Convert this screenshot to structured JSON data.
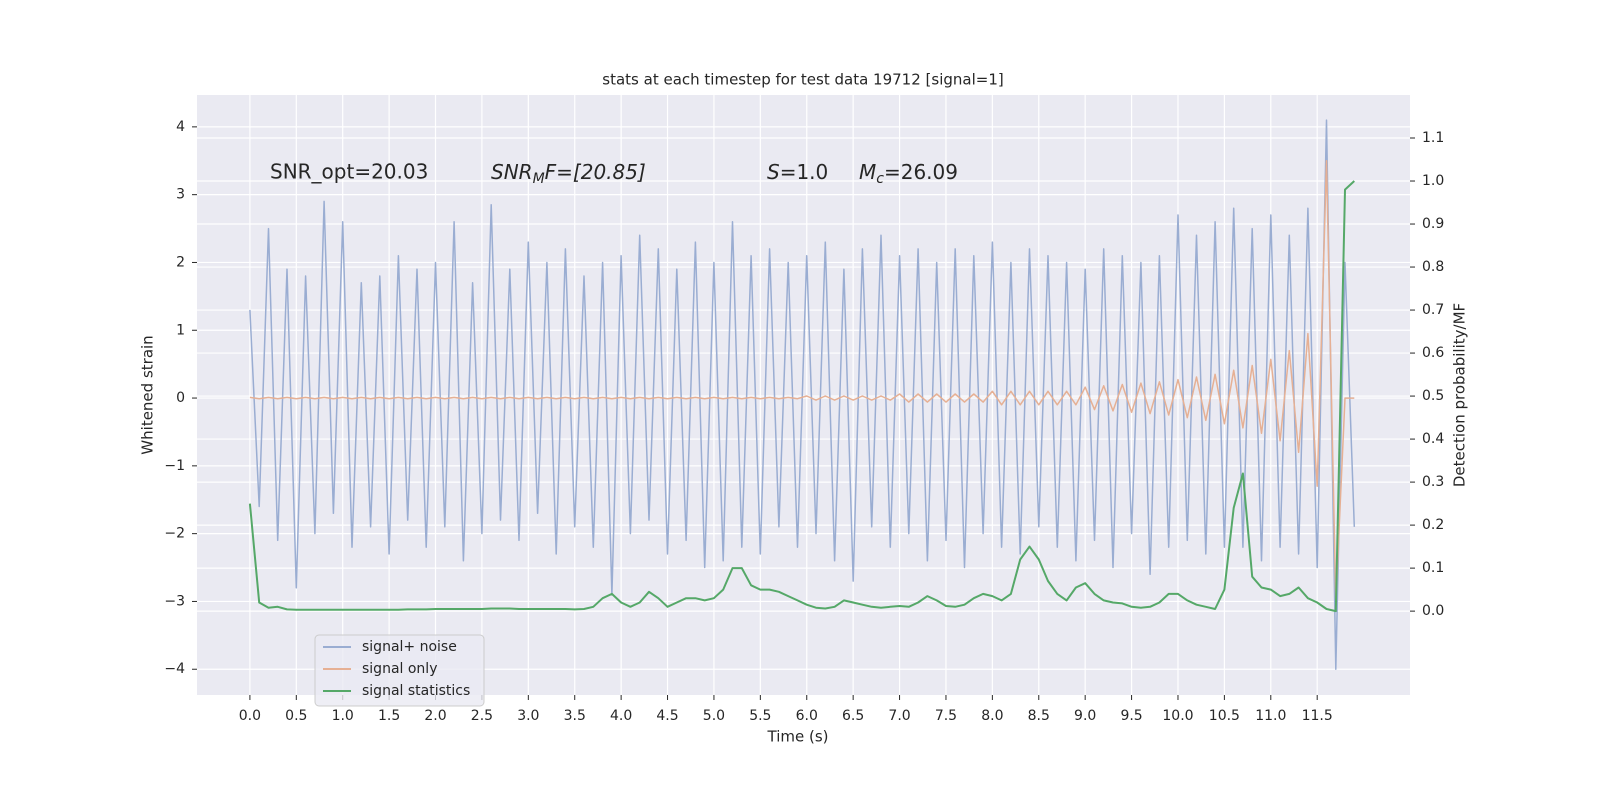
{
  "chart_data": {
    "type": "line",
    "title": "stats at each timestep for test data 19712 [signal=1]",
    "xlabel": "Time (s)",
    "ylabel": "Whitened strain",
    "y2label": "Detection probability/MF",
    "annotations": [
      {
        "text": "SNR_opt=20.03"
      },
      {
        "base": "SNR",
        "sub": "M",
        "tail": "F=[20.85]"
      },
      {
        "base": "S",
        "tail": "=1.0"
      },
      {
        "base": "M",
        "sub": "c",
        "tail": "=26.09"
      }
    ],
    "x": [
      0,
      0.1,
      0.2,
      0.3,
      0.4,
      0.5,
      0.6,
      0.7,
      0.8,
      0.9,
      1,
      1.1,
      1.2,
      1.3,
      1.4,
      1.5,
      1.6,
      1.7,
      1.8,
      1.9,
      2,
      2.1,
      2.2,
      2.3,
      2.4,
      2.5,
      2.6,
      2.7,
      2.8,
      2.9,
      3,
      3.1,
      3.2,
      3.3,
      3.4,
      3.5,
      3.6,
      3.7,
      3.8,
      3.9,
      4,
      4.1,
      4.2,
      4.3,
      4.4,
      4.5,
      4.6,
      4.7,
      4.8,
      4.9,
      5,
      5.1,
      5.2,
      5.3,
      5.4,
      5.5,
      5.6,
      5.7,
      5.8,
      5.9,
      6,
      6.1,
      6.2,
      6.3,
      6.4,
      6.5,
      6.6,
      6.7,
      6.8,
      6.9,
      7,
      7.1,
      7.2,
      7.3,
      7.4,
      7.5,
      7.6,
      7.7,
      7.8,
      7.9,
      8,
      8.1,
      8.2,
      8.3,
      8.4,
      8.5,
      8.6,
      8.7,
      8.8,
      8.9,
      9,
      9.1,
      9.2,
      9.3,
      9.4,
      9.5,
      9.6,
      9.7,
      9.8,
      9.9,
      10,
      10.1,
      10.2,
      10.3,
      10.4,
      10.5,
      10.6,
      10.7,
      10.8,
      10.9,
      11,
      11.1,
      11.2,
      11.3,
      11.4,
      11.5,
      11.6,
      11.7,
      11.8,
      11.9
    ],
    "series": [
      {
        "name": "signal+ noise",
        "color": "#9aadd2",
        "values": [
          1.3,
          -1.6,
          2.5,
          -2.1,
          1.9,
          -2.8,
          1.8,
          -2.0,
          2.9,
          -1.7,
          2.6,
          -2.2,
          1.7,
          -1.9,
          1.8,
          -2.3,
          2.1,
          -1.8,
          1.9,
          -2.2,
          2.0,
          -1.9,
          2.6,
          -2.4,
          1.7,
          -2.0,
          2.85,
          -1.8,
          1.9,
          -2.1,
          2.3,
          -1.7,
          2.0,
          -2.3,
          2.2,
          -1.9,
          1.8,
          -2.2,
          2.0,
          -2.9,
          2.1,
          -2.0,
          2.4,
          -1.8,
          2.2,
          -2.3,
          1.9,
          -2.1,
          2.3,
          -2.5,
          2.0,
          -2.4,
          2.6,
          -2.2,
          2.1,
          -2.3,
          2.2,
          -1.9,
          2.0,
          -2.2,
          2.1,
          -2.0,
          2.3,
          -2.4,
          1.9,
          -2.7,
          2.2,
          -1.9,
          2.4,
          -2.2,
          2.1,
          -2.0,
          2.2,
          -2.4,
          2.0,
          -2.1,
          2.2,
          -2.5,
          2.1,
          -2.0,
          2.3,
          -2.2,
          2.0,
          -2.3,
          2.2,
          -1.9,
          2.1,
          -2.2,
          2.0,
          -2.4,
          1.9,
          -2.1,
          2.2,
          -2.5,
          2.1,
          -2.0,
          2.0,
          -2.6,
          2.1,
          -2.2,
          2.7,
          -2.1,
          2.4,
          -2.3,
          2.6,
          -2.2,
          2.8,
          -2.2,
          2.5,
          -2.4,
          2.7,
          -2.2,
          2.4,
          -2.3,
          2.8,
          -2.5,
          4.1,
          -4.0,
          2.0,
          -1.9
        ]
      },
      {
        "name": "signal only",
        "color": "#e6b094",
        "values": [
          0.01,
          -0.01,
          0.01,
          -0.01,
          0.01,
          -0.01,
          0.01,
          -0.01,
          0.01,
          -0.01,
          0.01,
          -0.01,
          0.01,
          -0.01,
          0.01,
          -0.01,
          0.01,
          -0.01,
          0.01,
          -0.01,
          0.01,
          -0.01,
          0.01,
          -0.01,
          0.01,
          -0.01,
          0.01,
          -0.01,
          0.01,
          -0.01,
          0.01,
          -0.01,
          0.01,
          -0.01,
          0.01,
          -0.01,
          0.01,
          -0.01,
          0.01,
          -0.01,
          0.01,
          -0.01,
          0.01,
          -0.01,
          0.01,
          -0.01,
          0.01,
          -0.01,
          0.01,
          -0.01,
          0.01,
          -0.01,
          0.01,
          -0.01,
          0.01,
          -0.01,
          0.01,
          -0.01,
          0.01,
          -0.01,
          0.03,
          -0.03,
          0.03,
          -0.03,
          0.03,
          -0.03,
          0.03,
          -0.03,
          0.03,
          -0.03,
          0.06,
          -0.06,
          0.06,
          -0.06,
          0.06,
          -0.06,
          0.06,
          -0.06,
          0.06,
          -0.06,
          0.1,
          -0.1,
          0.1,
          -0.1,
          0.1,
          -0.1,
          0.1,
          -0.1,
          0.1,
          -0.1,
          0.16,
          -0.17,
          0.18,
          -0.19,
          0.2,
          -0.21,
          0.22,
          -0.23,
          0.24,
          -0.25,
          0.27,
          -0.29,
          0.31,
          -0.33,
          0.35,
          -0.38,
          0.41,
          -0.44,
          0.48,
          -0.52,
          0.57,
          -0.63,
          0.7,
          -0.8,
          0.95,
          -1.3,
          3.5,
          -3.0,
          0,
          0
        ]
      },
      {
        "name": "signal statistics",
        "color": "#55a868",
        "axis": "y2",
        "values": [
          0.25,
          0.02,
          0.008,
          0.01,
          0.004,
          0.003,
          0.003,
          0.003,
          0.003,
          0.003,
          0.003,
          0.003,
          0.003,
          0.003,
          0.003,
          0.003,
          0.003,
          0.004,
          0.004,
          0.004,
          0.005,
          0.005,
          0.005,
          0.005,
          0.005,
          0.005,
          0.006,
          0.006,
          0.006,
          0.005,
          0.005,
          0.005,
          0.005,
          0.005,
          0.005,
          0.004,
          0.005,
          0.01,
          0.03,
          0.04,
          0.02,
          0.01,
          0.02,
          0.045,
          0.03,
          0.01,
          0.02,
          0.03,
          0.03,
          0.025,
          0.03,
          0.05,
          0.1,
          0.1,
          0.06,
          0.05,
          0.05,
          0.045,
          0.035,
          0.025,
          0.015,
          0.008,
          0.006,
          0.01,
          0.025,
          0.02,
          0.015,
          0.01,
          0.008,
          0.01,
          0.012,
          0.01,
          0.02,
          0.035,
          0.025,
          0.012,
          0.01,
          0.015,
          0.03,
          0.04,
          0.035,
          0.025,
          0.04,
          0.12,
          0.15,
          0.12,
          0.07,
          0.04,
          0.025,
          0.055,
          0.065,
          0.04,
          0.025,
          0.02,
          0.018,
          0.01,
          0.008,
          0.01,
          0.02,
          0.04,
          0.04,
          0.025,
          0.015,
          0.01,
          0.005,
          0.05,
          0.24,
          0.32,
          0.08,
          0.055,
          0.05,
          0.035,
          0.04,
          0.055,
          0.03,
          0.02,
          0.005,
          0.0,
          0.98,
          1.0
        ]
      }
    ],
    "xlim": [
      -0.57,
      12.5
    ],
    "xticks": [
      {
        "value": 0,
        "label": "0.0"
      },
      0.5,
      {
        "value": 1,
        "label": "1.0"
      },
      1.5,
      {
        "value": 2,
        "label": "2.0"
      },
      2.5,
      {
        "value": 3,
        "label": "3.0"
      },
      3.5,
      {
        "value": 4,
        "label": "4.0"
      },
      4.5,
      {
        "value": 5,
        "label": "5.0"
      },
      5.5,
      {
        "value": 6,
        "label": "6.0"
      },
      6.5,
      {
        "value": 7,
        "label": "7.0"
      },
      7.5,
      {
        "value": 8,
        "label": "8.0"
      },
      8.5,
      {
        "value": 9,
        "label": "9.0"
      },
      9.5,
      {
        "value": 10,
        "label": "10.0"
      },
      10.5,
      {
        "value": 11,
        "label": "11.0"
      },
      11.5
    ],
    "ylim": [
      -4.38,
      4.47
    ],
    "yticks": [
      {
        "value": -4,
        "label": "−4"
      },
      {
        "value": -3,
        "label": "−3"
      },
      {
        "value": -2,
        "label": "−2"
      },
      {
        "value": -1,
        "label": "−1"
      },
      0,
      1,
      2,
      3,
      4
    ],
    "y2lim": [
      -0.195,
      1.2
    ],
    "y2ticks": [
      {
        "value": 0,
        "label": "0.0"
      },
      0.1,
      0.2,
      0.3,
      0.4,
      0.5,
      0.6,
      0.7,
      0.8,
      0.9,
      {
        "value": 1,
        "label": "1.0"
      },
      1.1
    ],
    "grid": true,
    "legend": "lower left"
  }
}
